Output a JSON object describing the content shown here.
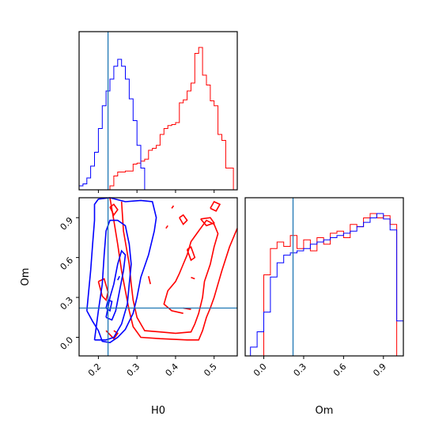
{
  "chart_data": {
    "type": "corner",
    "parameters": [
      "H0",
      "Om"
    ],
    "xlabels": {
      "H0": "H0",
      "Om": "Om"
    },
    "ylabel": "Om",
    "ranges": {
      "H0": [
        0.15,
        0.56
      ],
      "Om": [
        -0.14,
        1.05
      ]
    },
    "ticks": {
      "H0": [
        0.2,
        0.3,
        0.4,
        0.5
      ],
      "Om": [
        0.0,
        0.3,
        0.6,
        0.9
      ]
    },
    "tick_labels": {
      "H0": [
        "0.2",
        "0.3",
        "0.4",
        "0.5"
      ],
      "Om": [
        "0.0",
        "0.3",
        "0.6",
        "0.9"
      ]
    },
    "truth": {
      "H0": 0.225,
      "Om": 0.22
    },
    "series": [
      {
        "color": "#ff0000",
        "hist_H0": {
          "edges": [
            0.23,
            0.24,
            0.25,
            0.26,
            0.27,
            0.28,
            0.29,
            0.3,
            0.31,
            0.32,
            0.33,
            0.34,
            0.35,
            0.36,
            0.37,
            0.38,
            0.39,
            0.4,
            0.41,
            0.42,
            0.43,
            0.44,
            0.45,
            0.46,
            0.47,
            0.48,
            0.49,
            0.5,
            0.51,
            0.52,
            0.53,
            0.54,
            0.55
          ],
          "counts": [
            4,
            14,
            18,
            18,
            19,
            19,
            26,
            27,
            29,
            31,
            40,
            42,
            45,
            56,
            62,
            65,
            66,
            68,
            88,
            91,
            100,
            108,
            138,
            144,
            116,
            106,
            90,
            85,
            56,
            50,
            22,
            22
          ]
        },
        "hist_Om": {
          "edges": [
            0.0,
            0.05,
            0.1,
            0.15,
            0.2,
            0.25,
            0.3,
            0.35,
            0.4,
            0.45,
            0.5,
            0.55,
            0.6,
            0.65,
            0.7,
            0.75,
            0.8,
            0.85,
            0.9,
            0.95,
            1.0
          ],
          "counts": [
            74,
            98,
            104,
            100,
            110,
            98,
            106,
            96,
            108,
            102,
            112,
            114,
            108,
            120,
            118,
            126,
            130,
            126,
            128,
            120
          ]
        }
      },
      {
        "color": "#0000ff",
        "hist_H0": {
          "edges": [
            0.15,
            0.16,
            0.17,
            0.18,
            0.19,
            0.2,
            0.21,
            0.22,
            0.23,
            0.24,
            0.25,
            0.26,
            0.27,
            0.28,
            0.29,
            0.3,
            0.31,
            0.32
          ],
          "counts": [
            4,
            6,
            12,
            24,
            38,
            62,
            85,
            100,
            112,
            125,
            132,
            125,
            112,
            92,
            70,
            45,
            22
          ]
        },
        "hist_Om": {
          "edges": [
            -0.1,
            -0.05,
            0.0,
            0.05,
            0.1,
            0.15,
            0.2,
            0.25,
            0.3,
            0.35,
            0.4,
            0.45,
            0.5,
            0.55,
            0.6,
            0.65,
            0.7,
            0.75,
            0.8,
            0.85,
            0.9,
            0.95,
            1.0,
            1.05
          ],
          "counts": [
            8,
            22,
            40,
            72,
            85,
            92,
            94,
            96,
            98,
            102,
            104,
            106,
            108,
            110,
            112,
            114,
            118,
            122,
            126,
            130,
            125,
            115,
            32
          ]
        }
      }
    ],
    "contours": [
      {
        "color": "#ff0000",
        "paths": [
          [
            [
              0.23,
              1.05
            ],
            [
              0.24,
              0.88
            ],
            [
              0.25,
              0.7
            ],
            [
              0.26,
              0.5
            ],
            [
              0.27,
              0.35
            ],
            [
              0.28,
              0.2
            ],
            [
              0.29,
              0.08
            ],
            [
              0.31,
              0.0
            ],
            [
              0.36,
              -0.01
            ],
            [
              0.43,
              -0.02
            ],
            [
              0.46,
              -0.02
            ],
            [
              0.47,
              0.05
            ],
            [
              0.48,
              0.15
            ],
            [
              0.49,
              0.22
            ],
            [
              0.5,
              0.3
            ],
            [
              0.51,
              0.4
            ],
            [
              0.52,
              0.5
            ],
            [
              0.54,
              0.68
            ],
            [
              0.56,
              0.82
            ]
          ],
          [
            [
              0.26,
              1.02
            ],
            [
              0.265,
              0.8
            ],
            [
              0.28,
              0.55
            ],
            [
              0.285,
              0.4
            ],
            [
              0.29,
              0.28
            ],
            [
              0.3,
              0.15
            ],
            [
              0.32,
              0.05
            ],
            [
              0.36,
              0.04
            ],
            [
              0.4,
              0.03
            ],
            [
              0.44,
              0.04
            ],
            [
              0.45,
              0.1
            ],
            [
              0.46,
              0.18
            ],
            [
              0.47,
              0.3
            ],
            [
              0.475,
              0.42
            ],
            [
              0.49,
              0.55
            ],
            [
              0.5,
              0.68
            ],
            [
              0.51,
              0.78
            ],
            [
              0.5,
              0.85
            ],
            [
              0.48,
              0.88
            ],
            [
              0.46,
              0.8
            ],
            [
              0.44,
              0.72
            ],
            [
              0.43,
              0.62
            ],
            [
              0.42,
              0.55
            ],
            [
              0.41,
              0.48
            ],
            [
              0.4,
              0.42
            ],
            [
              0.38,
              0.35
            ],
            [
              0.37,
              0.25
            ],
            [
              0.39,
              0.2
            ],
            [
              0.42,
              0.18
            ]
          ],
          [
            [
              0.22,
              0.05
            ],
            [
              0.24,
              -0.01
            ],
            [
              0.25,
              0.03
            ],
            [
              0.24,
              0.05
            ]
          ],
          [
            [
              0.2,
              0.42
            ],
            [
              0.21,
              0.31
            ],
            [
              0.22,
              0.28
            ],
            [
              0.225,
              0.34
            ],
            [
              0.215,
              0.44
            ],
            [
              0.2,
              0.42
            ]
          ],
          [
            [
              0.23,
              0.98
            ],
            [
              0.24,
              0.92
            ],
            [
              0.25,
              0.96
            ],
            [
              0.24,
              1.0
            ],
            [
              0.23,
              0.98
            ]
          ],
          [
            [
              0.41,
              0.9
            ],
            [
              0.42,
              0.85
            ],
            [
              0.43,
              0.88
            ],
            [
              0.42,
              0.92
            ],
            [
              0.41,
              0.9
            ]
          ],
          [
            [
              0.465,
              0.89
            ],
            [
              0.48,
              0.84
            ],
            [
              0.5,
              0.86
            ],
            [
              0.49,
              0.9
            ],
            [
              0.465,
              0.89
            ]
          ],
          [
            [
              0.49,
              0.97
            ],
            [
              0.505,
              0.95
            ],
            [
              0.515,
              1.0
            ],
            [
              0.5,
              1.02
            ],
            [
              0.49,
              0.97
            ]
          ],
          [
            [
              0.43,
              0.66
            ],
            [
              0.44,
              0.58
            ],
            [
              0.45,
              0.6
            ],
            [
              0.44,
              0.68
            ],
            [
              0.43,
              0.66
            ]
          ],
          [
            [
              0.42,
              0.22
            ],
            [
              0.44,
              0.21
            ]
          ],
          [
            [
              0.44,
              0.45
            ],
            [
              0.45,
              0.44
            ]
          ],
          [
            [
              0.33,
              0.46
            ],
            [
              0.335,
              0.4
            ]
          ],
          [
            [
              0.375,
              0.82
            ],
            [
              0.38,
              0.84
            ]
          ],
          [
            [
              0.39,
              0.97
            ],
            [
              0.395,
              0.99
            ]
          ]
        ]
      },
      {
        "color": "#0000ff",
        "paths": [
          [
            [
              0.17,
              0.2
            ],
            [
              0.175,
              0.35
            ],
            [
              0.18,
              0.5
            ],
            [
              0.185,
              0.7
            ],
            [
              0.19,
              0.88
            ],
            [
              0.19,
              1.0
            ],
            [
              0.2,
              1.04
            ],
            [
              0.23,
              1.05
            ],
            [
              0.27,
              1.02
            ],
            [
              0.31,
              1.03
            ],
            [
              0.34,
              1.02
            ],
            [
              0.35,
              0.9
            ],
            [
              0.345,
              0.8
            ],
            [
              0.33,
              0.62
            ],
            [
              0.31,
              0.45
            ],
            [
              0.3,
              0.3
            ],
            [
              0.29,
              0.18
            ],
            [
              0.27,
              0.06
            ],
            [
              0.25,
              0.0
            ],
            [
              0.23,
              -0.04
            ],
            [
              0.21,
              -0.03
            ],
            [
              0.2,
              0.05
            ],
            [
              0.185,
              0.12
            ],
            [
              0.17,
              0.2
            ]
          ],
          [
            [
              0.19,
              -0.02
            ],
            [
              0.2,
              0.2
            ],
            [
              0.21,
              0.4
            ],
            [
              0.215,
              0.62
            ],
            [
              0.22,
              0.8
            ],
            [
              0.23,
              0.88
            ],
            [
              0.25,
              0.88
            ],
            [
              0.27,
              0.84
            ],
            [
              0.28,
              0.7
            ],
            [
              0.285,
              0.55
            ],
            [
              0.28,
              0.4
            ],
            [
              0.275,
              0.25
            ],
            [
              0.26,
              0.1
            ],
            [
              0.24,
              0.0
            ],
            [
              0.22,
              -0.02
            ],
            [
              0.19,
              -0.02
            ]
          ],
          [
            [
              0.22,
              0.15
            ],
            [
              0.23,
              0.3
            ],
            [
              0.24,
              0.4
            ],
            [
              0.25,
              0.55
            ],
            [
              0.26,
              0.65
            ],
            [
              0.27,
              0.62
            ],
            [
              0.265,
              0.5
            ],
            [
              0.255,
              0.35
            ],
            [
              0.245,
              0.2
            ],
            [
              0.235,
              0.13
            ],
            [
              0.22,
              0.15
            ]
          ],
          [
            [
              0.22,
              0.22
            ],
            [
              0.23,
              0.2
            ],
            [
              0.235,
              0.27
            ],
            [
              0.225,
              0.28
            ],
            [
              0.22,
              0.22
            ]
          ],
          [
            [
              0.25,
              0.43
            ],
            [
              0.255,
              0.46
            ]
          ]
        ]
      }
    ]
  }
}
